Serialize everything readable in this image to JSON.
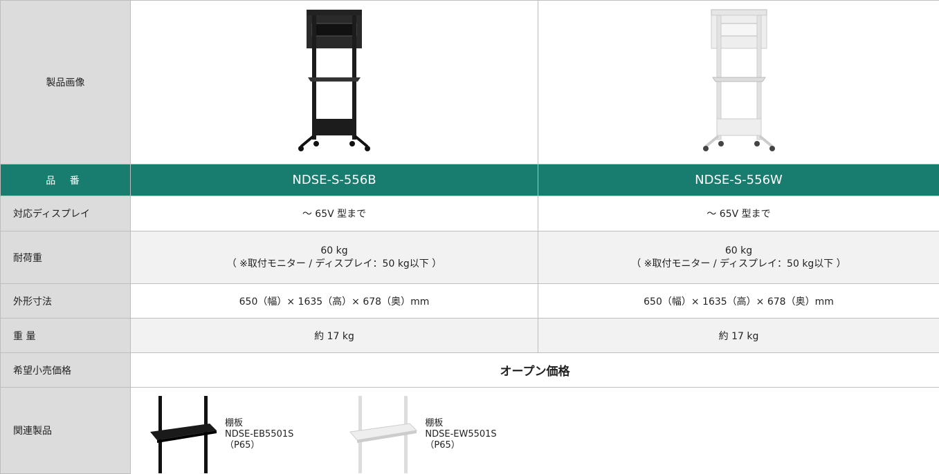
{
  "table": {
    "rows": [
      {
        "label": "製品画像"
      },
      {
        "label": "品 番",
        "cells": [
          "NDSE-S-556B",
          "NDSE-S-556W"
        ]
      },
      {
        "label": "対応ディスプレイ",
        "cells": [
          "〜 65V 型まで",
          "〜 65V 型まで"
        ]
      },
      {
        "label": "耐荷重",
        "cells": [
          [
            "60 kg",
            "（ ※取付モニター / ディスプレイ：50 kg以下 ）"
          ],
          [
            "60 kg",
            "（ ※取付モニター / ディスプレイ：50 kg以下 ）"
          ]
        ]
      },
      {
        "label": "外形寸法",
        "cells": [
          "650（幅）× 1635（高）× 678（奥）mm",
          "650（幅）× 1635（高）× 678（奥）mm"
        ]
      },
      {
        "label": "重 量",
        "cells": [
          "約 17 kg",
          "約 17 kg"
        ]
      },
      {
        "label": "希望小売価格",
        "value": "オープン価格"
      },
      {
        "label": "関連製品",
        "items": [
          [
            "棚板",
            "NDSE-EB5501S",
            "（P65）"
          ],
          [
            "棚板",
            "NDSE-EW5501S",
            "（P65）"
          ]
        ]
      }
    ]
  }
}
